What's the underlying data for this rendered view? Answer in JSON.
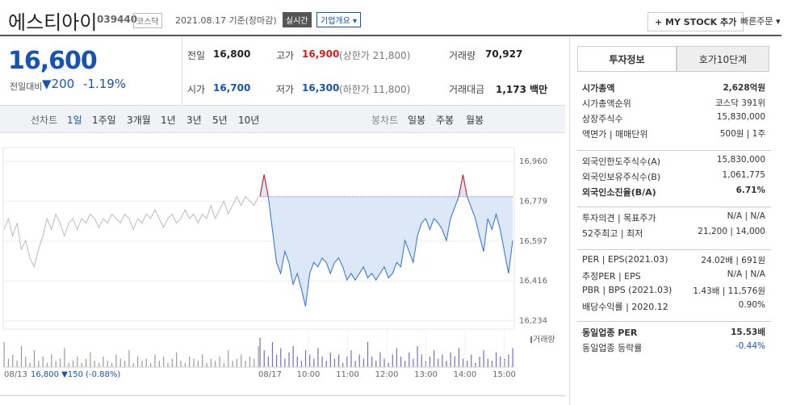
{
  "header": {
    "name": "에스티아이",
    "code": "039440",
    "market": "코스닥",
    "date": "2021.08.17 기준(장마감)",
    "realtime": "실시간",
    "company": "기업개요 ▾",
    "mystock": "+ MY STOCK 추가",
    "quick_order": "빠른주문 ▾"
  },
  "quote": {
    "price": "16,600",
    "change_label": "전일대비",
    "change": "▼200",
    "rate": "-1.19%",
    "cells": [
      {
        "label": "전일",
        "value": "16,800"
      },
      {
        "label": "고가",
        "value": "16,900",
        "note": "(상한가 21,800)"
      },
      {
        "label": "거래량",
        "value": "70,927"
      },
      {
        "label": "시가",
        "value": "16,700"
      },
      {
        "label": "저가",
        "value": "16,300",
        "note": "(하한가 11,800)"
      },
      {
        "label": "거래대금",
        "value": "1,173 백만"
      }
    ]
  },
  "chart_tabs": {
    "line_label": "선차트",
    "line": [
      "1일",
      "1주일",
      "3개월",
      "1년",
      "3년",
      "5년",
      "10년"
    ],
    "candle_label": "봉차트",
    "candle": [
      "일봉",
      "주봉",
      "월봉"
    ]
  },
  "chart": {
    "type": "line",
    "ylim": [
      16200,
      16990
    ],
    "yticks": [
      {
        "value": 16960,
        "label": "16,960"
      },
      {
        "value": 16779,
        "label": "16,779"
      },
      {
        "value": 16597,
        "label": "16,597"
      },
      {
        "value": 16416,
        "label": "16,416"
      },
      {
        "value": 16234,
        "label": "16,234"
      }
    ],
    "baseline": 16800,
    "prev_values": [
      16650,
      16700,
      16620,
      16680,
      16560,
      16600,
      16520,
      16480,
      16560,
      16620,
      16700,
      16650,
      16720,
      16680,
      16620,
      16680,
      16700,
      16650,
      16700,
      16680,
      16720,
      16700,
      16660,
      16700,
      16680,
      16720,
      16700,
      16680,
      16720,
      16700,
      16650,
      16700,
      16680,
      16720,
      16700,
      16740,
      16700,
      16660,
      16700,
      16720,
      16680,
      16700,
      16740,
      16700,
      16720,
      16680,
      16720,
      16700,
      16760,
      16700,
      16740,
      16780,
      16720,
      16760,
      16800,
      16760,
      16800,
      16780,
      16760,
      16800
    ],
    "values": [
      16800,
      16900,
      16800,
      16650,
      16500,
      16450,
      16550,
      16500,
      16400,
      16450,
      16380,
      16300,
      16450,
      16500,
      16480,
      16520,
      16500,
      16450,
      16500,
      16520,
      16480,
      16420,
      16450,
      16420,
      16450,
      16480,
      16430,
      16450,
      16420,
      16450,
      16480,
      16430,
      16450,
      16500,
      16480,
      16600,
      16550,
      16500,
      16620,
      16680,
      16700,
      16650,
      16700,
      16680,
      16650,
      16600,
      16700,
      16750,
      16800,
      16900,
      16800,
      16750,
      16700,
      16620,
      16550,
      16700,
      16650,
      16720,
      16650,
      16550,
      16450,
      16600
    ],
    "prev_volumes": [
      12,
      4,
      6,
      3,
      10,
      5,
      2,
      8,
      3,
      5,
      2,
      6,
      3,
      4,
      9,
      2,
      3,
      5,
      2,
      4,
      7,
      3,
      2,
      5,
      3,
      2,
      6,
      4,
      3,
      8,
      2,
      5,
      3,
      4,
      2,
      6,
      3,
      5,
      2,
      4,
      7,
      3,
      2,
      5,
      4,
      3,
      6,
      2,
      4,
      3,
      5,
      2,
      8,
      3,
      4,
      6,
      3,
      5,
      4,
      10
    ],
    "volumes": [
      14,
      8,
      5,
      12,
      6,
      9,
      4,
      7,
      10,
      5,
      3,
      8,
      6,
      4,
      9,
      5,
      3,
      7,
      4,
      6,
      2,
      5,
      8,
      3,
      6,
      4,
      12,
      5,
      3,
      7,
      4,
      2,
      6,
      9,
      5,
      3,
      7,
      4,
      10,
      6,
      3,
      5,
      8,
      4,
      6,
      3,
      7,
      5,
      9,
      4,
      3,
      6,
      2,
      5,
      8,
      4,
      3,
      7,
      5,
      4,
      6,
      9
    ],
    "volume_label": "거래량",
    "day_labels": [
      "08/13",
      "08/17"
    ],
    "time_labels": [
      "10:00",
      "11:00",
      "12:00",
      "13:00",
      "14:00",
      "15:00"
    ],
    "prev_summary": "16,800 ▼150 (-0.88%)"
  },
  "info": {
    "tabs": [
      "투자정보",
      "호가10단계"
    ],
    "groups": [
      [
        [
          "시가총액",
          "2,628억원"
        ],
        [
          "시가총액순위",
          "코스닥 391위"
        ],
        [
          "상장주식수",
          "15,830,000"
        ],
        [
          "액면가 | 매매단위",
          "500원 | 1주"
        ]
      ],
      [
        [
          "외국인한도주식수(A)",
          "15,830,000"
        ],
        [
          "외국인보유주식수(B)",
          "1,061,775"
        ],
        [
          "외국인소진율(B/A)",
          "6.71%"
        ]
      ],
      [
        [
          "투자의견 | 목표주가",
          "N/A | N/A"
        ],
        [
          "52주최고 | 최저",
          "21,200 | 14,000"
        ]
      ],
      [
        [
          "PER | EPS(2021.03)",
          "24.02배 | 691원"
        ],
        [
          "추정PER | EPS",
          "N/A | N/A"
        ],
        [
          "PBR | BPS (2021.03)",
          "1.43배 | 11,576원"
        ],
        [
          "배당수익률 | 2020.12",
          "0.90%"
        ]
      ],
      [
        [
          "동일업종 PER",
          "15.53배"
        ],
        [
          "동일업종 등락률",
          "-0.44%"
        ]
      ]
    ]
  }
}
